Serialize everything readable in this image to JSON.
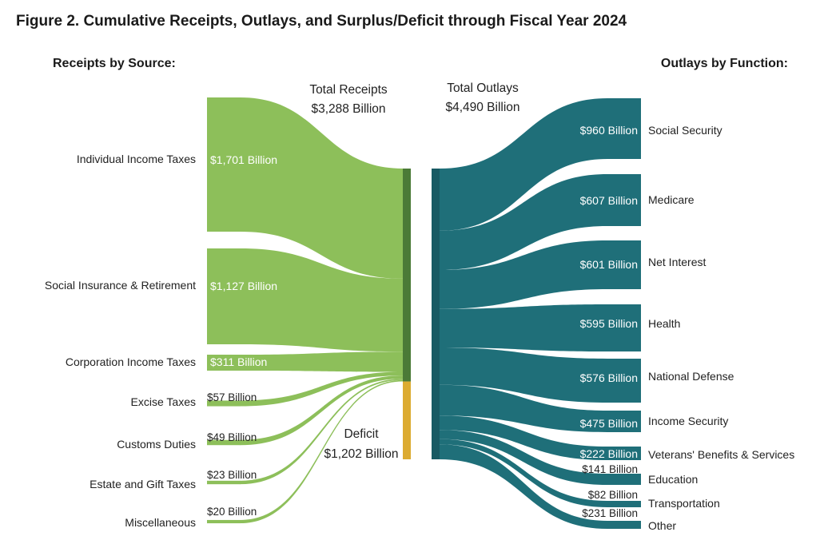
{
  "chart_data": {
    "type": "sankey",
    "title": "Figure 2. Cumulative Receipts, Outlays, and Surplus/Deficit through Fiscal Year 2024",
    "receipts_heading": "Receipts by Source:",
    "outlays_heading": "Outlays by Function:",
    "total_receipts": {
      "label": "Total Receipts",
      "value": 3288,
      "value_label": "$3,288 Billion"
    },
    "total_outlays": {
      "label": "Total Outlays",
      "value": 4490,
      "value_label": "$4,490 Billion"
    },
    "deficit": {
      "label": "Deficit",
      "value": 1202,
      "value_label": "$1,202 Billion"
    },
    "receipts": [
      {
        "name": "Individual Income Taxes",
        "value": 1701,
        "value_label": "$1,701 Billion"
      },
      {
        "name": "Social Insurance & Retirement",
        "value": 1127,
        "value_label": "$1,127 Billion"
      },
      {
        "name": "Corporation Income Taxes",
        "value": 311,
        "value_label": "$311 Billion"
      },
      {
        "name": "Excise Taxes",
        "value": 57,
        "value_label": "$57 Billion"
      },
      {
        "name": "Customs Duties",
        "value": 49,
        "value_label": "$49 Billion"
      },
      {
        "name": "Estate and Gift Taxes",
        "value": 23,
        "value_label": "$23 Billion"
      },
      {
        "name": "Miscellaneous",
        "value": 20,
        "value_label": "$20 Billion"
      }
    ],
    "outlays": [
      {
        "name": "Social Security",
        "value": 960,
        "value_label": "$960 Billion"
      },
      {
        "name": "Medicare",
        "value": 607,
        "value_label": "$607 Billion"
      },
      {
        "name": "Net Interest",
        "value": 601,
        "value_label": "$601 Billion"
      },
      {
        "name": "Health",
        "value": 595,
        "value_label": "$595 Billion"
      },
      {
        "name": "National Defense",
        "value": 576,
        "value_label": "$576 Billion"
      },
      {
        "name": "Income Security",
        "value": 475,
        "value_label": "$475 Billion"
      },
      {
        "name": "Veterans' Benefits & Services",
        "value": 222,
        "value_label": "$222 Billion"
      },
      {
        "name": "Education",
        "value": 141,
        "value_label": "$141 Billion"
      },
      {
        "name": "Transportation",
        "value": 82,
        "value_label": "$82 Billion"
      },
      {
        "name": "Other",
        "value": 231,
        "value_label": "$231 Billion"
      }
    ],
    "colors": {
      "receipts": "#8dbf5a",
      "receipts_bar": "#4b7a37",
      "deficit_bar": "#dcab31",
      "outlays": "#1f6f79",
      "outlays_bar": "#185a63"
    }
  }
}
